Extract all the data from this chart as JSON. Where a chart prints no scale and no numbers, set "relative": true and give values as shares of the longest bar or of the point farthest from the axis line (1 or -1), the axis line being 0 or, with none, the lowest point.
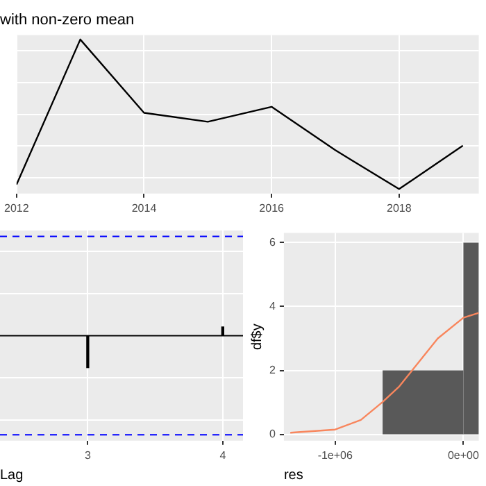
{
  "chart_data": [
    {
      "type": "line",
      "title": "with non-zero mean",
      "relative": true,
      "grid": true,
      "marker": "none",
      "color": "#000000",
      "x": [
        2012,
        2013,
        2014,
        2015,
        2016,
        2017,
        2018,
        2019
      ],
      "values": [
        0.03,
        1,
        0.51,
        0.45,
        0.55,
        0.26,
        0,
        0.29
      ],
      "xlim": [
        2012,
        2019.25
      ],
      "xticks": [
        2012,
        2014,
        2016,
        2018
      ]
    },
    {
      "type": "bar",
      "relative": true,
      "grid": true,
      "xlabel": "Lag",
      "color": "#000000",
      "x": [
        3,
        4
      ],
      "values": [
        -1,
        0.27
      ],
      "xlim": [
        2.35,
        4.15
      ],
      "xticks": [
        3,
        4
      ],
      "ref_lines": [
        {
          "axis": "y",
          "value": 3.09,
          "color": "#0000ff",
          "line_style": "dashed"
        },
        {
          "axis": "y",
          "value": -3.09,
          "color": "#0000ff",
          "line_style": "dashed"
        },
        {
          "axis": "y",
          "value": 0,
          "color": "#000000",
          "line_style": "solid"
        }
      ]
    },
    {
      "type": "histogram",
      "grid": true,
      "xlabel": "res",
      "ylabel": "df$y",
      "color": "#595959",
      "bins": [
        -630000,
        0,
        120000
      ],
      "values": [
        2,
        6
      ],
      "xlim": [
        -1400000,
        120000
      ],
      "xticks": [
        {
          "value": -1000000,
          "label": "-1e+06"
        },
        {
          "value": 0,
          "label": "0e+00"
        }
      ],
      "ylim": [
        -0.2,
        6.3
      ],
      "yticks": [
        0,
        2,
        4,
        6
      ],
      "series": [
        {
          "type": "line",
          "color": "#f8865d",
          "x": [
            -1350000,
            -1000000,
            -800000,
            -634000,
            -500000,
            -400000,
            -200000,
            0,
            120000
          ],
          "values": [
            0.05,
            0.15,
            0.45,
            1.0,
            1.5,
            2.0,
            3.0,
            3.65,
            3.8
          ]
        }
      ]
    }
  ]
}
